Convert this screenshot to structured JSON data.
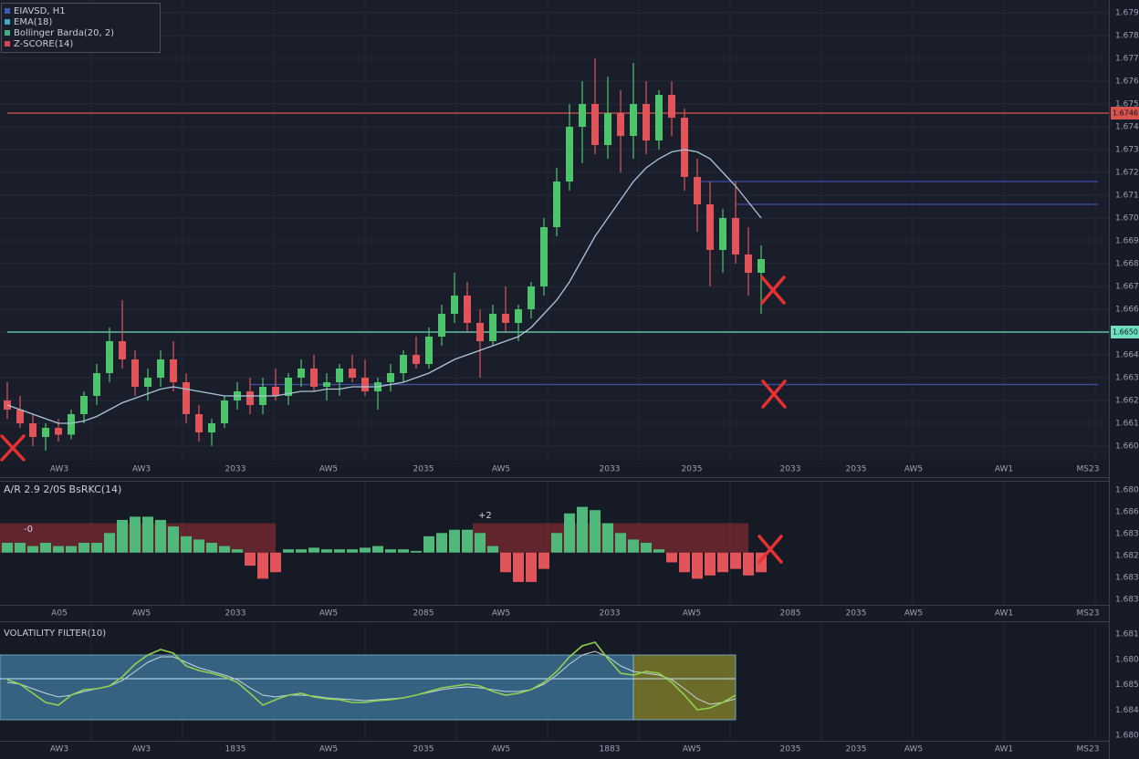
{
  "chart_data": [
    {
      "type": "candlestick",
      "legend": [
        {
          "name": "EIAVSD, H1",
          "color": "#3b5bb5"
        },
        {
          "name": "EMA(18)",
          "color": "#3fa7c4"
        },
        {
          "name": "Bollinger Barda(20, 2)",
          "color": "#3fae7a"
        },
        {
          "name": "Z-SCORE(14)",
          "color": "#d9434f"
        }
      ],
      "open": [
        1.662,
        1.6616,
        1.661,
        1.6604,
        1.6608,
        1.6605,
        1.6614,
        1.6622,
        1.6632,
        1.6646,
        1.6638,
        1.6626,
        1.663,
        1.6638,
        1.6628,
        1.6614,
        1.6606,
        1.661,
        1.662,
        1.6624,
        1.6618,
        1.6626,
        1.6622,
        1.663,
        1.6634,
        1.6626,
        1.6628,
        1.6634,
        1.663,
        1.6624,
        1.6628,
        1.6632,
        1.664,
        1.6636,
        1.6648,
        1.6658,
        1.6666,
        1.6654,
        1.6646,
        1.6658,
        1.6654,
        1.666,
        1.667,
        1.6696,
        1.6716,
        1.674,
        1.675,
        1.6732,
        1.6746,
        1.6736,
        1.675,
        1.6734,
        1.6754,
        1.6744,
        1.6718,
        1.6706,
        1.6686,
        1.67,
        1.6684,
        1.6676
      ],
      "high": [
        1.6628,
        1.6622,
        1.6614,
        1.661,
        1.6612,
        1.6616,
        1.6624,
        1.6636,
        1.6652,
        1.6664,
        1.6642,
        1.6634,
        1.6642,
        1.6646,
        1.6632,
        1.6618,
        1.6612,
        1.6622,
        1.6628,
        1.663,
        1.663,
        1.6634,
        1.6632,
        1.6638,
        1.664,
        1.6632,
        1.6636,
        1.664,
        1.6638,
        1.663,
        1.6636,
        1.6642,
        1.6648,
        1.6652,
        1.6662,
        1.6676,
        1.6672,
        1.666,
        1.6662,
        1.667,
        1.6662,
        1.6672,
        1.67,
        1.6722,
        1.675,
        1.676,
        1.677,
        1.6762,
        1.6756,
        1.6768,
        1.676,
        1.6756,
        1.676,
        1.6748,
        1.6726,
        1.6716,
        1.6704,
        1.6716,
        1.6696,
        1.6688
      ],
      "low": [
        1.6612,
        1.6608,
        1.66,
        1.6598,
        1.6602,
        1.6603,
        1.661,
        1.6618,
        1.6628,
        1.6634,
        1.6622,
        1.662,
        1.6626,
        1.6624,
        1.661,
        1.6602,
        1.66,
        1.6608,
        1.6616,
        1.6614,
        1.6614,
        1.662,
        1.6618,
        1.6626,
        1.6624,
        1.662,
        1.6622,
        1.6628,
        1.6622,
        1.6616,
        1.6624,
        1.6628,
        1.6634,
        1.6634,
        1.6644,
        1.6654,
        1.665,
        1.663,
        1.6644,
        1.665,
        1.6646,
        1.6656,
        1.6666,
        1.6692,
        1.6712,
        1.6724,
        1.6728,
        1.6726,
        1.672,
        1.6726,
        1.6728,
        1.673,
        1.6736,
        1.6712,
        1.6694,
        1.667,
        1.6676,
        1.668,
        1.6666,
        1.6658
      ],
      "close": [
        1.6616,
        1.661,
        1.6604,
        1.6608,
        1.6605,
        1.6614,
        1.6622,
        1.6632,
        1.6646,
        1.6638,
        1.6626,
        1.663,
        1.6638,
        1.6628,
        1.6614,
        1.6606,
        1.661,
        1.662,
        1.6624,
        1.6618,
        1.6626,
        1.6622,
        1.663,
        1.6634,
        1.6626,
        1.6628,
        1.6634,
        1.663,
        1.6624,
        1.6628,
        1.6632,
        1.664,
        1.6636,
        1.6648,
        1.6658,
        1.6666,
        1.6654,
        1.6646,
        1.6658,
        1.6654,
        1.666,
        1.667,
        1.6696,
        1.6716,
        1.674,
        1.675,
        1.6732,
        1.6746,
        1.6736,
        1.675,
        1.6734,
        1.6754,
        1.6744,
        1.6718,
        1.6706,
        1.6686,
        1.67,
        1.6684,
        1.6676,
        1.6682
      ],
      "up_color": "#4cc46b",
      "down_color": "#e0545a",
      "ema": {
        "color": "#a9c6d8",
        "values": [
          1.6618,
          1.6616,
          1.6614,
          1.6612,
          1.661,
          1.661,
          1.6611,
          1.6613,
          1.6616,
          1.6619,
          1.6621,
          1.6623,
          1.6625,
          1.6626,
          1.6625,
          1.6624,
          1.6623,
          1.6622,
          1.6622,
          1.6622,
          1.6622,
          1.6622,
          1.6623,
          1.6624,
          1.6624,
          1.6625,
          1.6625,
          1.6626,
          1.6626,
          1.6626,
          1.6627,
          1.6628,
          1.663,
          1.6632,
          1.6635,
          1.6638,
          1.664,
          1.6642,
          1.6644,
          1.6646,
          1.6648,
          1.6652,
          1.6658,
          1.6664,
          1.6672,
          1.6682,
          1.6692,
          1.67,
          1.6708,
          1.6716,
          1.6722,
          1.6726,
          1.6729,
          1.673,
          1.6729,
          1.6726,
          1.672,
          1.6714,
          1.6707,
          1.67
        ]
      },
      "levels": [
        {
          "value": 1.6746,
          "label": "1.6746",
          "color": "#d9534f",
          "start": 0
        },
        {
          "value": 1.665,
          "label": "1.6650",
          "color": "#6fe0c0",
          "start": 0
        },
        {
          "value": 1.6627,
          "color": "#3d4fa8",
          "start": 19
        },
        {
          "value": 1.6716,
          "color": "#3d4fa8",
          "start": 54
        },
        {
          "value": 1.6706,
          "color": "#3d4fa8",
          "start": 57
        }
      ],
      "ylim": [
        1.65936,
        1.67956
      ],
      "yticks": [
        {
          "value": 1.66,
          "label": "1.6600"
        },
        {
          "value": 1.661,
          "label": "1.6610"
        },
        {
          "value": 1.662,
          "label": "1.6620"
        },
        {
          "value": 1.663,
          "label": "1.6630"
        },
        {
          "value": 1.664,
          "label": "1.6640"
        },
        {
          "value": 1.665,
          "label": "1.6650"
        },
        {
          "value": 1.666,
          "label": "1.6660"
        },
        {
          "value": 1.667,
          "label": "1.6670"
        },
        {
          "value": 1.668,
          "label": "1.6680"
        },
        {
          "value": 1.669,
          "label": "1.6690"
        },
        {
          "value": 1.67,
          "label": "1.6700"
        },
        {
          "value": 1.671,
          "label": "1.6710"
        },
        {
          "value": 1.672,
          "label": "1.6720"
        },
        {
          "value": 1.673,
          "label": "1.6730"
        },
        {
          "value": 1.674,
          "label": "1.6740"
        },
        {
          "value": 1.675,
          "label": "1.6750"
        },
        {
          "value": 1.676,
          "label": "1.6760"
        },
        {
          "value": 1.677,
          "label": "1.6770"
        },
        {
          "value": 1.678,
          "label": "1.6780"
        },
        {
          "value": 1.679,
          "label": "1.6790"
        }
      ],
      "grid": true,
      "x_labels": [
        "AW3",
        "AW3",
        "2033",
        "AW5",
        "2035",
        "AW5",
        "2033",
        "2035",
        "2033",
        "2035",
        "AW5",
        "AW1",
        "MS23"
      ]
    },
    {
      "type": "histogram",
      "title": "A/R 2.9 2/0S BsRKC(14)",
      "values": [
        0.3,
        0.3,
        0.2,
        0.3,
        0.2,
        0.2,
        0.3,
        0.3,
        0.6,
        1.0,
        1.1,
        1.1,
        1.0,
        0.8,
        0.5,
        0.4,
        0.3,
        0.2,
        0.1,
        -0.4,
        -0.8,
        -0.6,
        0.1,
        0.1,
        0.15,
        0.1,
        0.1,
        0.1,
        0.15,
        0.2,
        0.1,
        0.1,
        0.05,
        0.5,
        0.6,
        0.7,
        0.7,
        0.6,
        0.2,
        -0.6,
        -0.9,
        -0.9,
        -0.5,
        0.6,
        1.2,
        1.4,
        1.3,
        0.9,
        0.6,
        0.4,
        0.3,
        0.1,
        -0.3,
        -0.6,
        -0.8,
        -0.7,
        -0.6,
        -0.5,
        -0.7,
        -0.6
      ],
      "pos_color": "#4fb87a",
      "neg_color": "#e0545a",
      "zones": [
        {
          "start": 0,
          "end": 21,
          "low": 0,
          "high": 0.9,
          "color": "#7a2a30"
        },
        {
          "start": 37,
          "end": 58,
          "low": 0,
          "high": 0.9,
          "color": "#7a2a30"
        }
      ],
      "annotations": [
        "-0",
        "+2"
      ],
      "ylim": [
        -1.6,
        2.2
      ],
      "axis_labels": [
        "1.6800",
        "1.6860",
        "1.6830",
        "1.6820",
        "1.6830",
        "1.6830"
      ],
      "x_labels": [
        "A05",
        "AW5",
        "2033",
        "AW5",
        "2085",
        "AW5",
        "2033",
        "AW5",
        "2085",
        "2035",
        "AW5",
        "AW1",
        "MS23"
      ]
    },
    {
      "type": "line",
      "title": "VOLATILITY FILTER(10)",
      "series": [
        {
          "color": "#8fd14f",
          "values": [
            55,
            50,
            40,
            30,
            27,
            38,
            44,
            45,
            48,
            58,
            72,
            82,
            88,
            84,
            70,
            65,
            62,
            58,
            52,
            40,
            27,
            33,
            38,
            40,
            36,
            34,
            33,
            30,
            30,
            32,
            33,
            35,
            38,
            42,
            46,
            48,
            50,
            48,
            42,
            38,
            40,
            44,
            52,
            64,
            80,
            92,
            96,
            78,
            62,
            60,
            64,
            62,
            52,
            38,
            22,
            24,
            30,
            38,
            null,
            null
          ]
        },
        {
          "color": "#c8d3dc",
          "values": [
            52,
            50,
            45,
            40,
            36,
            38,
            42,
            45,
            48,
            54,
            64,
            74,
            80,
            80,
            74,
            68,
            64,
            60,
            55,
            46,
            38,
            36,
            38,
            38,
            37,
            35,
            34,
            33,
            32,
            33,
            34,
            35,
            38,
            41,
            44,
            46,
            47,
            46,
            44,
            42,
            42,
            44,
            50,
            60,
            72,
            82,
            86,
            80,
            70,
            64,
            62,
            60,
            55,
            45,
            34,
            28,
            30,
            34,
            null,
            null
          ]
        }
      ],
      "zones": [
        {
          "start": 0,
          "end": 49,
          "low": 11,
          "high": 82,
          "color": "#3b6f92"
        },
        {
          "start": 49,
          "end": 57,
          "low": 11,
          "high": 82,
          "color": "#7b7a2c"
        }
      ],
      "level": 56,
      "ylim": [
        -12,
        115
      ],
      "axis_labels": [
        "1.6810",
        "1.6800",
        "1.6850",
        "1.6840",
        "1.6800"
      ],
      "x_labels": [
        "AW3",
        "AW3",
        "1835",
        "AW5",
        "2035",
        "AW5",
        "1883",
        "AW5",
        "2035",
        "2035",
        "AW5",
        "AW1",
        "MS23"
      ]
    }
  ]
}
